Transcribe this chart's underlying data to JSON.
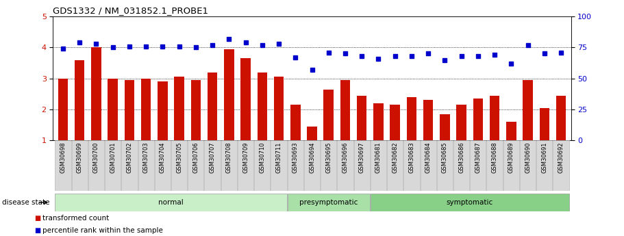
{
  "title": "GDS1332 / NM_031852.1_PROBE1",
  "samples": [
    "GSM30698",
    "GSM30699",
    "GSM30700",
    "GSM30701",
    "GSM30702",
    "GSM30703",
    "GSM30704",
    "GSM30705",
    "GSM30706",
    "GSM30707",
    "GSM30708",
    "GSM30709",
    "GSM30710",
    "GSM30711",
    "GSM30693",
    "GSM30694",
    "GSM30695",
    "GSM30696",
    "GSM30697",
    "GSM30681",
    "GSM30682",
    "GSM30683",
    "GSM30684",
    "GSM30685",
    "GSM30686",
    "GSM30687",
    "GSM30688",
    "GSM30689",
    "GSM30690",
    "GSM30691",
    "GSM30692"
  ],
  "bar_values": [
    3.0,
    3.6,
    4.0,
    3.0,
    2.95,
    3.0,
    2.9,
    3.05,
    2.95,
    3.2,
    3.95,
    3.65,
    3.2,
    3.05,
    2.15,
    1.45,
    2.65,
    2.95,
    2.45,
    2.2,
    2.15,
    2.4,
    2.3,
    1.85,
    2.15,
    2.35,
    2.45,
    1.6,
    2.95,
    2.05,
    2.45
  ],
  "dot_values": [
    74,
    79,
    78,
    75,
    76,
    76,
    76,
    76,
    75,
    77,
    82,
    79,
    77,
    78,
    67,
    57,
    71,
    70,
    68,
    66,
    68,
    68,
    70,
    65,
    68,
    68,
    69,
    62,
    77,
    70,
    71
  ],
  "groups": [
    {
      "label": "normal",
      "start": 0,
      "end": 13,
      "color": "#c8efc8"
    },
    {
      "label": "presymptomatic",
      "start": 14,
      "end": 18,
      "color": "#a8e0a8"
    },
    {
      "label": "symptomatic",
      "start": 19,
      "end": 30,
      "color": "#88d088"
    }
  ],
  "bar_color": "#cc1100",
  "dot_color": "#0000cc",
  "ylim_left": [
    1,
    5
  ],
  "ylim_right": [
    0,
    100
  ],
  "yticks_left": [
    1,
    2,
    3,
    4,
    5
  ],
  "yticks_right": [
    0,
    25,
    50,
    75,
    100
  ],
  "legend_bar_label": "transformed count",
  "legend_dot_label": "percentile rank within the sample",
  "disease_state_label": "disease state",
  "gridlines": [
    2,
    3,
    4
  ],
  "plot_bg_color": "#ffffff",
  "label_bg_color": "#d8d8d8",
  "label_edge_color": "#aaaaaa"
}
